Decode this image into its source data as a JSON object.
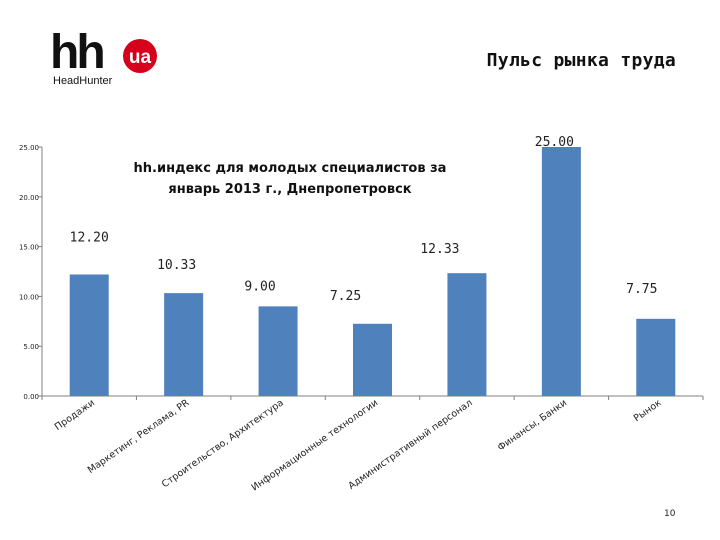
{
  "header": {
    "logo_text": "hh",
    "logo_badge": "ua",
    "logo_sub": "HeadHunter",
    "title": "Пульс рынка труда"
  },
  "colors": {
    "bar": "#4f81bd",
    "logo_red": "#d6001c",
    "axis": "#808080"
  },
  "page_number": "10",
  "chart_data": {
    "type": "bar",
    "title": "hh.индекс  для молодых специалистов  за январь 2013 г., Днепропетровск",
    "title_lines": [
      "hh.индекс  для молодых специалистов  за",
      "январь 2013 г., Днепропетровск"
    ],
    "categories": [
      "Продажи",
      "Маркетинг, Реклама, PR",
      "Строительство, Архитектура",
      "Информационные технологии",
      "Административный персонал",
      "Финансы, Банки",
      "Рынок"
    ],
    "values": [
      12.2,
      10.33,
      9.0,
      7.25,
      12.33,
      25.0,
      7.75
    ],
    "data_labels": [
      "12.20",
      "10.33",
      "9.00",
      "7.25",
      "12.33",
      "25.00",
      "7.75"
    ],
    "ylim": [
      0,
      25
    ],
    "yticks": [
      "0.00",
      "5.00",
      "10.00",
      "15.00",
      "20.00",
      "25.00"
    ],
    "xlabel": "",
    "ylabel": "",
    "grid": false,
    "legend": "none"
  }
}
